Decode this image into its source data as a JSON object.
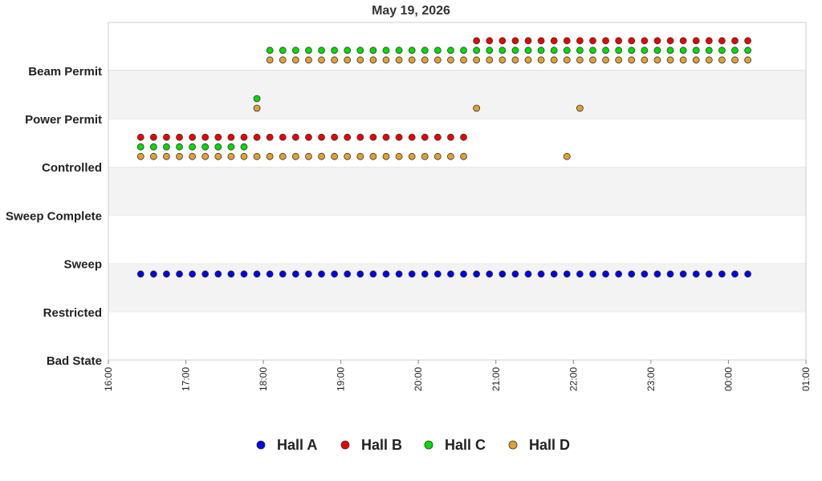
{
  "chart_data": {
    "type": "scatter",
    "title": "May 19, 2026",
    "y_categories": [
      "Bad State",
      "Restricted",
      "Sweep",
      "Sweep Complete",
      "Controlled",
      "Power Permit",
      "Beam Permit"
    ],
    "x_ticks": [
      "16:00",
      "17:00",
      "18:00",
      "19:00",
      "20:00",
      "21:00",
      "22:00",
      "23:00",
      "00:00",
      "01:00"
    ],
    "xlim": [
      "16:00",
      "01:00"
    ],
    "x_interval_minutes": 10,
    "grid": "alternating horizontal bands",
    "legend_position": "bottom",
    "series": [
      {
        "name": "Hall A",
        "color": "#0000ee",
        "segments": [
          {
            "state": "Restricted",
            "start": "16:25",
            "end": "00:15"
          }
        ]
      },
      {
        "name": "Hall B",
        "color": "#ee0000",
        "segments": [
          {
            "state": "Controlled",
            "start": "16:25",
            "end": "20:35"
          },
          {
            "state": "Beam Permit",
            "start": "20:45",
            "end": "00:15"
          }
        ]
      },
      {
        "name": "Hall C",
        "color": "#00dd00",
        "segments": [
          {
            "state": "Controlled",
            "start": "16:25",
            "end": "17:45"
          },
          {
            "state": "Power Permit",
            "start": "17:55",
            "end": "17:55"
          },
          {
            "state": "Beam Permit",
            "start": "18:05",
            "end": "00:15"
          }
        ]
      },
      {
        "name": "Hall D",
        "color": "#e0a030",
        "segments": [
          {
            "state": "Controlled",
            "start": "16:25",
            "end": "20:35"
          },
          {
            "state": "Power Permit",
            "start": "17:55",
            "end": "17:55"
          },
          {
            "state": "Beam Permit",
            "start": "18:05",
            "end": "00:15"
          },
          {
            "state": "Power Permit",
            "start": "20:45",
            "end": "20:45"
          },
          {
            "state": "Power Permit",
            "start": "22:05",
            "end": "22:05"
          },
          {
            "state": "Controlled",
            "start": "21:55",
            "end": "21:55"
          }
        ]
      }
    ]
  }
}
